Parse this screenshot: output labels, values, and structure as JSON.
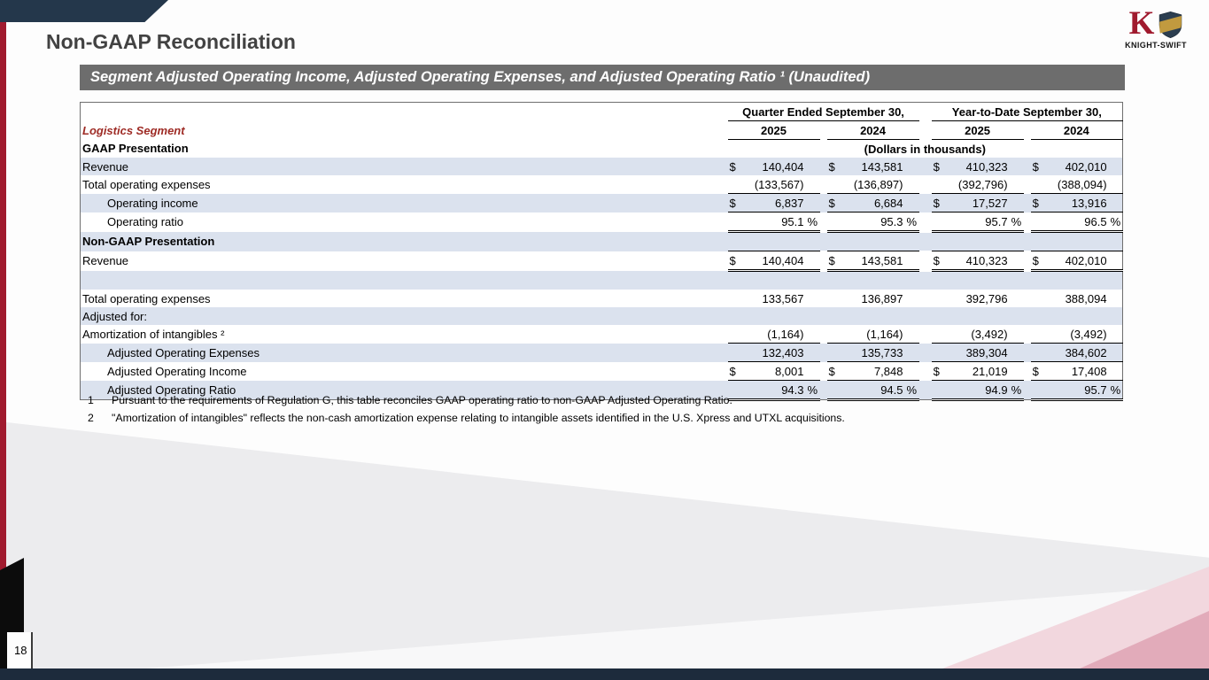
{
  "slide": {
    "title": "Non-GAAP Reconciliation",
    "page_number": "18"
  },
  "logo": {
    "knight_letter": "K",
    "brand": "KNIGHT-SWIFT"
  },
  "table": {
    "bar_title": "Segment Adjusted Operating Income, Adjusted Operating Expenses, and Adjusted Operating Ratio ¹ (Unaudited)",
    "segment_label": "Logistics Segment",
    "gaap_section_label": "GAAP Presentation",
    "units_note": "(Dollars in thousands)",
    "col_groups": [
      "Quarter Ended September 30,",
      "Year-to-Date September 30,"
    ],
    "years": [
      "2025",
      "2024",
      "2025",
      "2024"
    ],
    "rows": [
      {
        "label": "Revenue",
        "shade": true,
        "values": [
          {
            "d": "$",
            "v": "140,404"
          },
          {
            "d": "$",
            "v": "143,581"
          },
          {
            "d": "$",
            "v": "410,323"
          },
          {
            "d": "$",
            "v": "402,010"
          }
        ]
      },
      {
        "label": "Total operating expenses",
        "shade": false,
        "values": [
          {
            "v": "(133,567)"
          },
          {
            "v": "(136,897)"
          },
          {
            "v": "(392,796)"
          },
          {
            "v": "(388,094)"
          }
        ]
      },
      {
        "label": "Operating income",
        "indent": true,
        "shade": true,
        "bt": true,
        "bb": "single",
        "values": [
          {
            "d": "$",
            "v": "6,837"
          },
          {
            "d": "$",
            "v": "6,684"
          },
          {
            "d": "$",
            "v": "17,527"
          },
          {
            "d": "$",
            "v": "13,916"
          }
        ]
      },
      {
        "label": "Operating ratio",
        "indent": true,
        "shade": false,
        "bb": "double",
        "values": [
          {
            "v": "95.1",
            "s": "%"
          },
          {
            "v": "95.3",
            "s": "%"
          },
          {
            "v": "95.7",
            "s": "%"
          },
          {
            "v": "96.5",
            "s": "%"
          }
        ]
      },
      {
        "label": "Non-GAAP Presentation",
        "bold": true,
        "shade": true,
        "values": []
      },
      {
        "label": "Revenue",
        "shade": false,
        "bt": true,
        "bb": "double",
        "values": [
          {
            "d": "$",
            "v": "140,404"
          },
          {
            "d": "$",
            "v": "143,581"
          },
          {
            "d": "$",
            "v": "410,323"
          },
          {
            "d": "$",
            "v": "402,010"
          }
        ]
      },
      {
        "label": "",
        "shade": true,
        "values": []
      },
      {
        "label": "Total operating expenses",
        "shade": false,
        "values": [
          {
            "v": "133,567"
          },
          {
            "v": "136,897"
          },
          {
            "v": "392,796"
          },
          {
            "v": "388,094"
          }
        ]
      },
      {
        "label": "Adjusted for:",
        "shade": true,
        "values": []
      },
      {
        "label": "Amortization of intangibles ²",
        "shade": false,
        "values": [
          {
            "v": "(1,164)"
          },
          {
            "v": "(1,164)"
          },
          {
            "v": "(3,492)"
          },
          {
            "v": "(3,492)"
          }
        ]
      },
      {
        "label": "Adjusted Operating Expenses",
        "indent": true,
        "shade": true,
        "bt": true,
        "values": [
          {
            "v": "132,403"
          },
          {
            "v": "135,733"
          },
          {
            "v": "389,304"
          },
          {
            "v": "384,602"
          }
        ]
      },
      {
        "label": "Adjusted Operating Income",
        "indent": true,
        "shade": false,
        "bt": true,
        "bb": "single",
        "values": [
          {
            "d": "$",
            "v": "8,001"
          },
          {
            "d": "$",
            "v": "7,848"
          },
          {
            "d": "$",
            "v": "21,019"
          },
          {
            "d": "$",
            "v": "17,408"
          }
        ]
      },
      {
        "label": "Adjusted Operating Ratio",
        "indent": true,
        "shade": true,
        "bb": "double",
        "values": [
          {
            "v": "94.3",
            "s": "%"
          },
          {
            "v": "94.5",
            "s": "%"
          },
          {
            "v": "94.9",
            "s": "%"
          },
          {
            "v": "95.7",
            "s": "%"
          }
        ]
      }
    ]
  },
  "footnotes": [
    {
      "num": "1",
      "text": "Pursuant to the requirements of Regulation G, this table reconciles GAAP operating ratio to non-GAAP Adjusted Operating Ratio."
    },
    {
      "num": "2",
      "text": "\"Amortization of intangibles\" reflects the non-cash amortization expense relating to intangible assets identified in the U.S. Xpress and UTXL acquisitions."
    }
  ],
  "colors": {
    "left_bar_red": "#a01a2e",
    "segment_red": "#9e2b25",
    "navy_shape": "#24374b",
    "bottom_bar_navy": "#1d2b3c",
    "header_bar_gray": "#6d6d6d",
    "row_shade_blue": "#dbe2ee",
    "pink_light": "#f2d7de",
    "pink_deep": "#e2abba",
    "shield_navy": "#2c3e50",
    "shield_gold": "#c19a3f",
    "title_gray": "#424242"
  }
}
